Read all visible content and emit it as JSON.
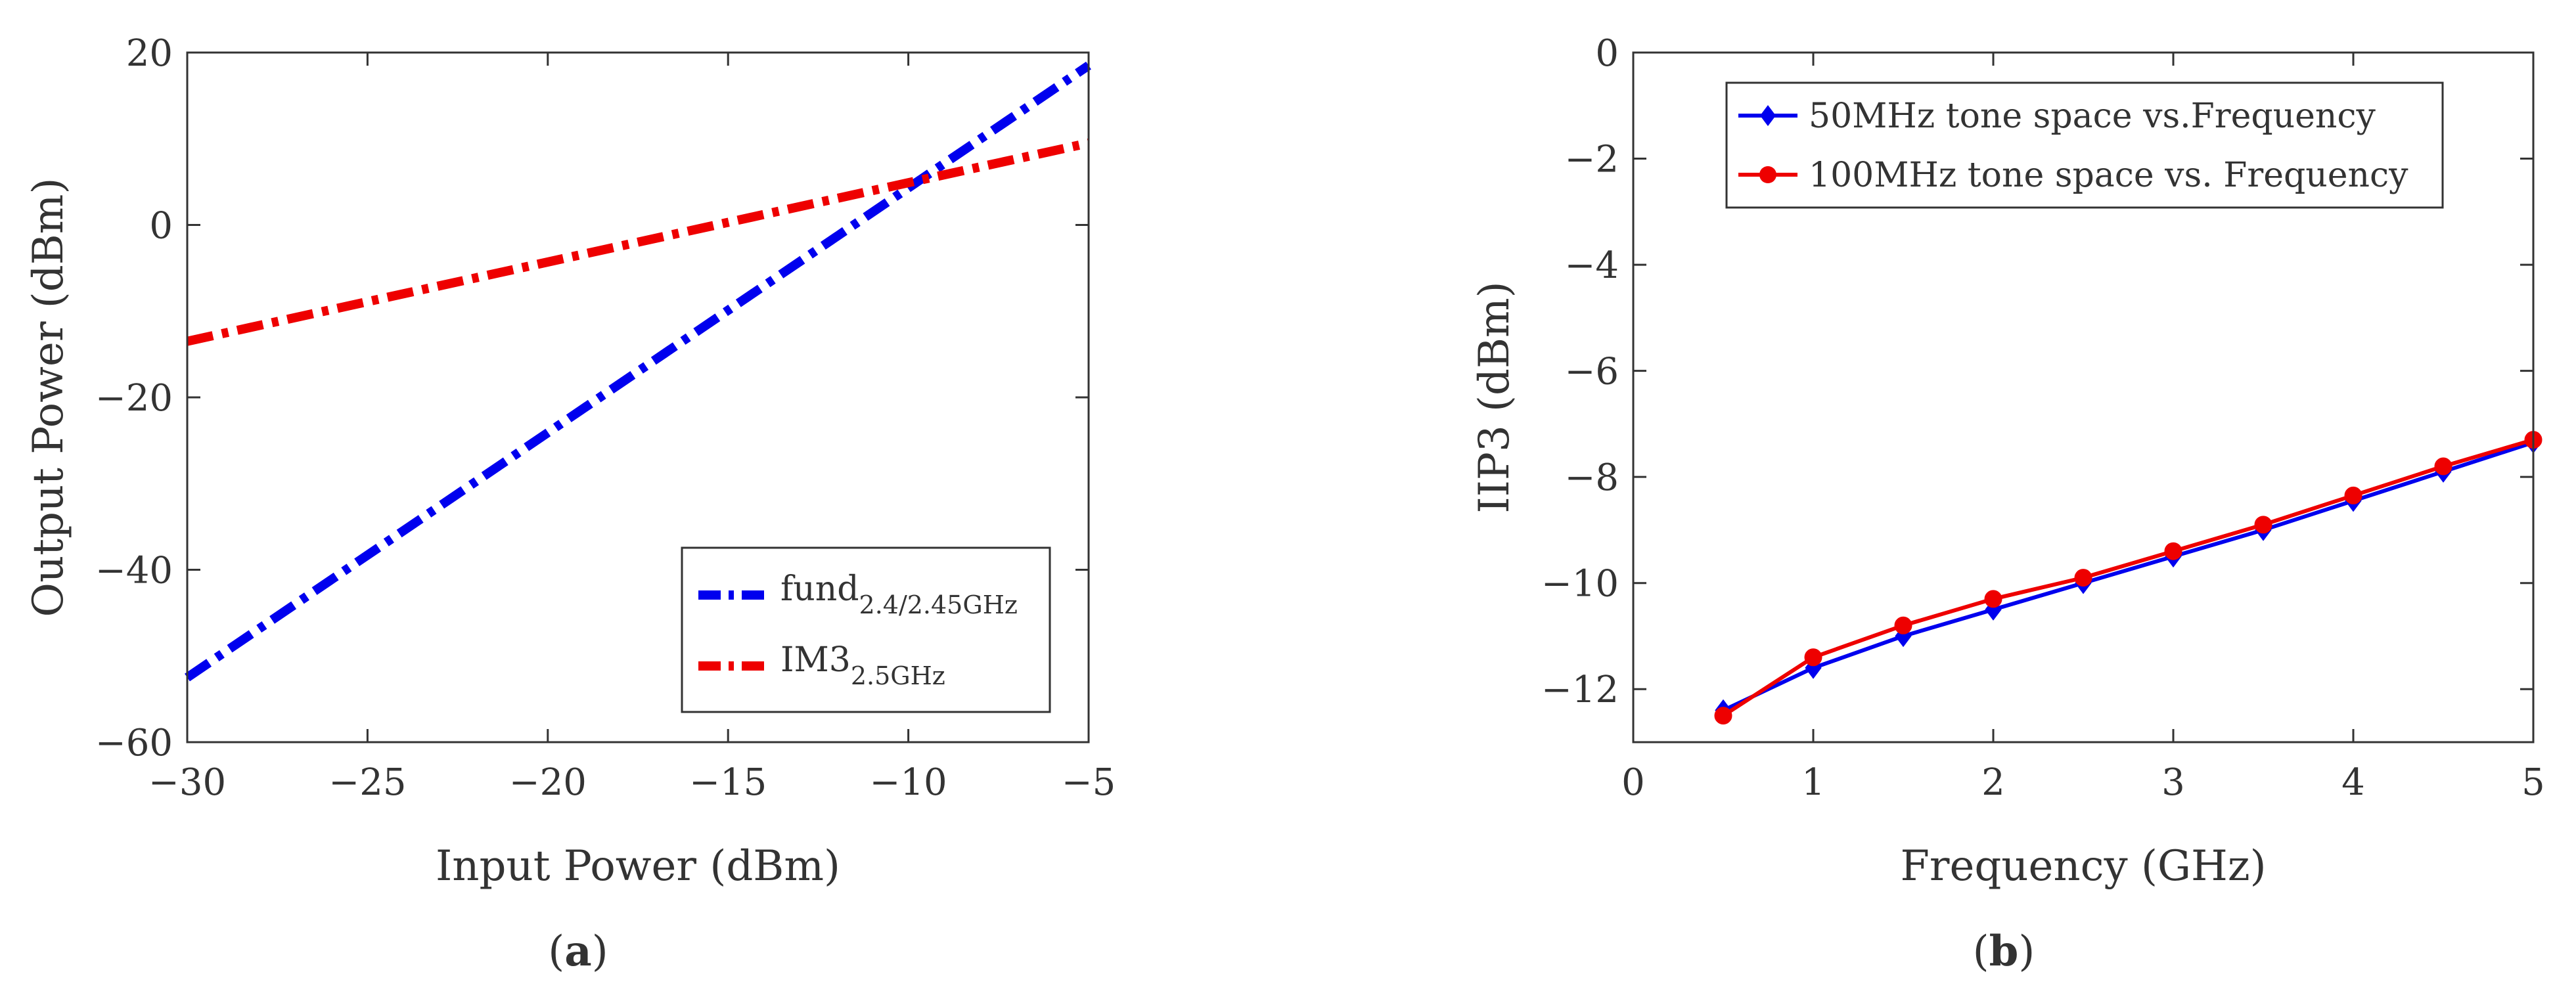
{
  "chart_data": [
    {
      "type": "line",
      "panel_caption": {
        "open": "(",
        "letter": "a",
        "close": ")"
      },
      "xlabel": "Input Power (dBm)",
      "ylabel": "Output Power (dBm)",
      "xlim": [
        -30,
        -5
      ],
      "ylim": [
        -60,
        20
      ],
      "xticks": [
        -30,
        -25,
        -20,
        -15,
        -10,
        -5
      ],
      "xtick_labels": [
        "−30",
        "−25",
        "−20",
        "−15",
        "−10",
        "−5"
      ],
      "yticks": [
        -60,
        -40,
        -20,
        0,
        20
      ],
      "ytick_labels": [
        "−60",
        "−40",
        "−20",
        "0",
        "20"
      ],
      "legend_position": "bottom-right",
      "series": [
        {
          "name": "fund",
          "subscript": "2.4/2.45GHz",
          "color": "#0000ee",
          "line_style": "dash-dot",
          "x": [
            -30,
            -5
          ],
          "y": [
            -52.5,
            18.5
          ]
        },
        {
          "name": "IM3",
          "subscript": "2.5GHz",
          "color": "#ee0000",
          "line_style": "dash-dot",
          "x": [
            -30,
            -5
          ],
          "y": [
            -13.5,
            9.5
          ]
        }
      ]
    },
    {
      "type": "line",
      "panel_caption": {
        "open": "(",
        "letter": "b",
        "close": ")"
      },
      "xlabel": "Frequency (GHz)",
      "ylabel": "IIP3 (dBm)",
      "xlim": [
        0,
        5
      ],
      "ylim": [
        -13,
        0
      ],
      "xticks": [
        0,
        1,
        2,
        3,
        4,
        5
      ],
      "xtick_labels": [
        "0",
        "1",
        "2",
        "3",
        "4",
        "5"
      ],
      "yticks": [
        -12,
        -10,
        -8,
        -6,
        -4,
        -2,
        0
      ],
      "ytick_labels": [
        "−12",
        "−10",
        "−8",
        "−6",
        "−4",
        "−2",
        "0"
      ],
      "legend_position": "top-left",
      "series": [
        {
          "name": "50MHz tone space vs.Frequency",
          "color": "#0000ee",
          "marker": "diamond",
          "x": [
            0.5,
            1,
            1.5,
            2,
            2.5,
            3,
            3.5,
            4,
            4.5,
            5
          ],
          "y": [
            -12.4,
            -11.6,
            -11.0,
            -10.5,
            -10.0,
            -9.5,
            -9.0,
            -8.45,
            -7.9,
            -7.35
          ]
        },
        {
          "name": "100MHz tone space vs. Frequency",
          "color": "#ee0000",
          "marker": "circle",
          "x": [
            0.5,
            1,
            1.5,
            2,
            2.5,
            3,
            3.5,
            4,
            4.5,
            5
          ],
          "y": [
            -12.5,
            -11.4,
            -10.8,
            -10.3,
            -9.9,
            -9.4,
            -8.9,
            -8.35,
            -7.8,
            -7.3
          ]
        }
      ]
    }
  ]
}
